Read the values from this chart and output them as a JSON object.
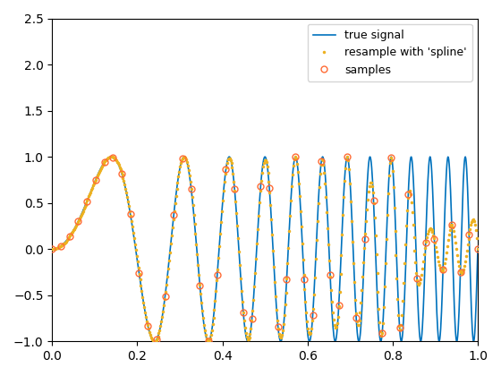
{
  "title": "",
  "xlabel": "",
  "ylabel": "",
  "xlim": [
    0,
    1
  ],
  "ylim": [
    -1.0,
    2.5
  ],
  "true_signal_color": "#0072BD",
  "samples_color": "#FF6B35",
  "resample_color": "#EDB120",
  "legend_labels": [
    "true signal",
    "samples",
    "resample with 'spline'"
  ],
  "true_n": 1000,
  "sample_n": 50,
  "resample_n": 500,
  "freq": 13,
  "background_color": "#ffffff",
  "xticks": [
    0,
    0.2,
    0.4,
    0.6,
    0.8,
    1.0
  ],
  "yticks": [
    -1.0,
    -0.5,
    0.0,
    0.5,
    1.0,
    1.5,
    2.0,
    2.5
  ]
}
